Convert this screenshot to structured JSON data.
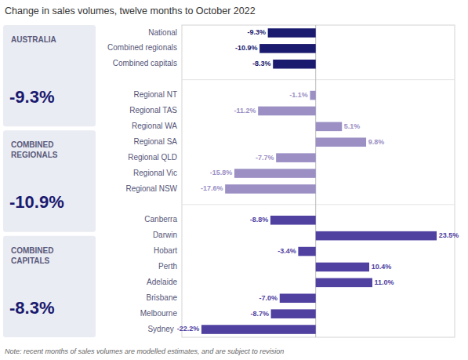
{
  "chart_data": {
    "type": "bar",
    "orientation": "horizontal",
    "title": "Change in sales volumes, twelve months to October 2022",
    "note": "Note: recent months of sales volumes are modelled estimates, and are subject to revision",
    "annotations": [
      {
        "text": "AUSTRALIA",
        "value_label": "-9.3%",
        "color": "#eaecf4"
      },
      {
        "text": "COMBINED\nREGIONALS",
        "value_label": "-10.9%",
        "color": "#eaecf4"
      },
      {
        "text": "COMBINED\nCAPITALS",
        "value_label": "-8.3%",
        "color": "#eaecf4"
      }
    ],
    "categories": [
      "National",
      "Combined regionals",
      "Combined capitals",
      null,
      "Regional NT",
      "Regional TAS",
      "Regional WA",
      "Regional SA",
      "Regional QLD",
      "Regional Vic",
      "Regional NSW",
      null,
      "Canberra",
      "Darwin",
      "Hobart",
      "Perth",
      "Adelaide",
      "Brisbane",
      "Melbourne",
      "Sydney"
    ],
    "values": [
      -9.3,
      -10.9,
      -8.3,
      null,
      -1.1,
      -11.2,
      5.1,
      9.8,
      -7.7,
      -15.8,
      -17.6,
      null,
      -8.8,
      23.5,
      -3.4,
      10.4,
      11.0,
      -7.0,
      -8.7,
      -22.2
    ],
    "value_labels": [
      "-9.3%",
      "-10.9%",
      "-8.3%",
      null,
      "-1.1%",
      "-11.2%",
      "5.1%",
      "9.8%",
      "-7.7%",
      "-15.8%",
      "-17.6%",
      null,
      "-8.8%",
      "23.5%",
      "-3.4%",
      "10.4%",
      "11.0%",
      "-7.0%",
      "-8.7%",
      "-22.2%"
    ],
    "colors": [
      "#1a1a6e",
      "#1a1a6e",
      "#1a1a6e",
      null,
      "#9b8fc4",
      "#9b8fc4",
      "#9b8fc4",
      "#9b8fc4",
      "#9b8fc4",
      "#9b8fc4",
      "#9b8fc4",
      null,
      "#5040a0",
      "#5040a0",
      "#5040a0",
      "#5040a0",
      "#5040a0",
      "#5040a0",
      "#5040a0",
      "#5040a0"
    ],
    "xlim": [
      -26,
      27
    ],
    "xticks": [
      0
    ],
    "data_labels": true,
    "tick_labels": "y",
    "grid": false
  }
}
